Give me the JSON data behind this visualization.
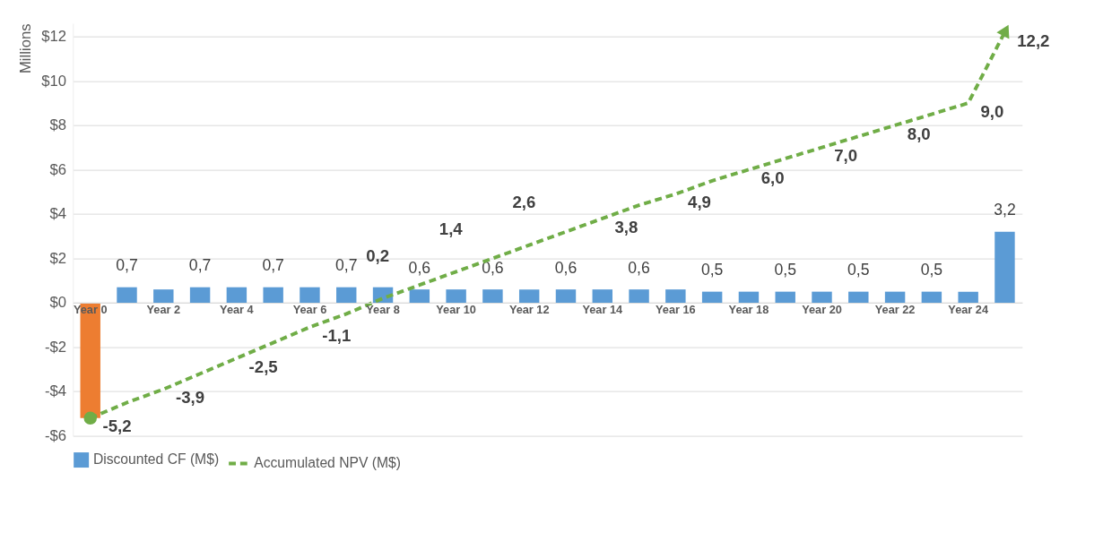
{
  "chart_data": {
    "type": "bar",
    "categories": [
      "Year 0",
      null,
      "Year 2",
      null,
      "Year 4",
      null,
      "Year 6",
      null,
      "Year 8",
      null,
      "Year 10",
      null,
      "Year 12",
      null,
      "Year 14",
      null,
      "Year 16",
      null,
      "Year 18",
      null,
      "Year 20",
      null,
      "Year 22",
      null,
      "Year 24",
      null
    ],
    "ylabel": "Millions",
    "ylim": [
      -6,
      12.6
    ],
    "yticks": [
      {
        "value": -6,
        "label": "-$6"
      },
      {
        "value": -4,
        "label": "-$4"
      },
      {
        "value": -2,
        "label": "-$2"
      },
      {
        "value": 0,
        "label": "$0"
      },
      {
        "value": 2,
        "label": "$2"
      },
      {
        "value": 4,
        "label": "$4"
      },
      {
        "value": 6,
        "label": "$6"
      },
      {
        "value": 8,
        "label": "$8"
      },
      {
        "value": 10,
        "label": "$10"
      },
      {
        "value": 12,
        "label": "$12"
      }
    ],
    "grid": "y",
    "legend": "bottom",
    "series": [
      {
        "name": "Discounted CF (M$)",
        "color": "#5b9bd5",
        "colors": [
          "#ed7d31",
          "#5b9bd5",
          "#5b9bd5",
          "#5b9bd5",
          "#5b9bd5",
          "#5b9bd5",
          "#5b9bd5",
          "#5b9bd5",
          "#5b9bd5",
          "#5b9bd5",
          "#5b9bd5",
          "#5b9bd5",
          "#5b9bd5",
          "#5b9bd5",
          "#5b9bd5",
          "#5b9bd5",
          "#5b9bd5",
          "#5b9bd5",
          "#5b9bd5",
          "#5b9bd5",
          "#5b9bd5",
          "#5b9bd5",
          "#5b9bd5",
          "#5b9bd5",
          "#5b9bd5",
          "#5b9bd5"
        ],
        "values": [
          -5.2,
          0.7,
          0.6,
          0.7,
          0.7,
          0.7,
          0.7,
          0.7,
          0.7,
          0.6,
          0.6,
          0.6,
          0.6,
          0.6,
          0.6,
          0.6,
          0.6,
          0.5,
          0.5,
          0.5,
          0.5,
          0.5,
          0.5,
          0.5,
          0.5,
          3.2
        ],
        "value_labels": [
          null,
          "0,7",
          null,
          "0,7",
          null,
          "0,7",
          null,
          "0,7",
          null,
          "0,6",
          null,
          "0,6",
          null,
          "0,6",
          null,
          "0,6",
          null,
          "0,5",
          null,
          "0,5",
          null,
          "0,5",
          null,
          "0,5",
          null,
          "3,2"
        ]
      },
      {
        "name": "Accumulated NPV (M$)",
        "type": "line",
        "color": "#70ad47",
        "line_style": "dashed",
        "values": [
          -5.2,
          -4.5,
          -3.9,
          -3.2,
          -2.5,
          -1.8,
          -1.1,
          -0.5,
          0.2,
          0.8,
          1.4,
          2.0,
          2.6,
          3.2,
          3.8,
          4.4,
          4.9,
          5.5,
          6.0,
          6.5,
          7.0,
          7.5,
          8.0,
          8.5,
          9.0,
          12.2
        ],
        "value_labels": [
          "-5,2",
          null,
          "-3,9",
          null,
          "-2,5",
          null,
          "-1,1",
          null,
          "0,2",
          null,
          "1,4",
          null,
          "2,6",
          null,
          "3,8",
          null,
          "4,9",
          null,
          "6,0",
          null,
          "7,0",
          null,
          "8,0",
          null,
          "9,0",
          "12,2"
        ]
      }
    ]
  }
}
